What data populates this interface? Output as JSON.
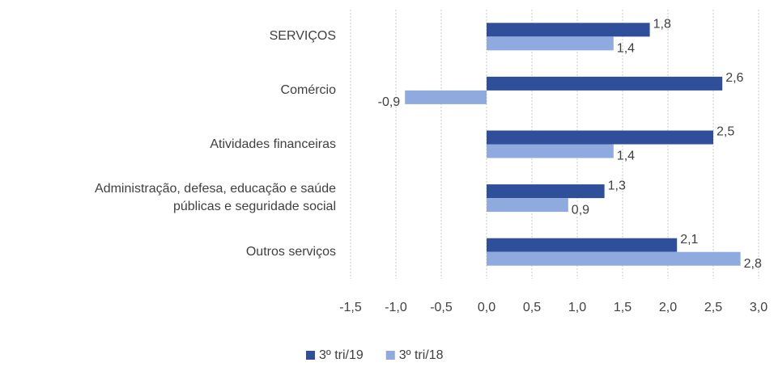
{
  "chart_data": {
    "type": "hbar",
    "categories": [
      "SERVIÇOS",
      "Comércio",
      "Atividades financeiras",
      "Administração, defesa, educação e saúde públicas e seguridade social",
      "Outros serviços"
    ],
    "series": [
      {
        "name": "3º tri/19",
        "color": "#2f4f9a",
        "values": [
          1.8,
          2.6,
          2.5,
          1.3,
          2.1
        ],
        "value_labels": [
          "1,8",
          "2,6",
          "2,5",
          "1,3",
          "2,1"
        ]
      },
      {
        "name": "3º tri/18",
        "color": "#8eaadf",
        "values": [
          1.4,
          -0.9,
          1.4,
          0.9,
          2.8
        ],
        "value_labels": [
          "1,4",
          "-0,9",
          "1,4",
          "0,9",
          "2,8"
        ]
      }
    ],
    "xlim": [
      -1.5,
      3.0
    ],
    "xticks": [
      {
        "value": -1.5,
        "label": "-1,5"
      },
      {
        "value": -1.0,
        "label": "-1,0"
      },
      {
        "value": -0.5,
        "label": "-0,5"
      },
      {
        "value": 0,
        "label": "0,0"
      },
      {
        "value": 0.5,
        "label": "0,5"
      },
      {
        "value": 1.0,
        "label": "1,0"
      },
      {
        "value": 1.5,
        "label": "1,5"
      },
      {
        "value": 2.0,
        "label": "2,0"
      },
      {
        "value": 2.5,
        "label": "2,5"
      },
      {
        "value": 3.0,
        "label": "3,0"
      }
    ],
    "grid": true,
    "legend": "bottom"
  }
}
